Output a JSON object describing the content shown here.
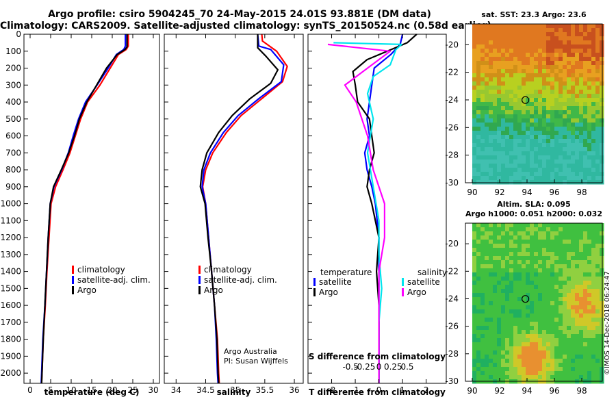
{
  "header": {
    "line1": "Argo profile: csiro 5904245_70 24-May-2015 24.01S 93.881E (DM data)",
    "line2": "Climatology: CARS2009. Satellite-adjusted climatology: synTS_20150524.nc (0.58d earlier)"
  },
  "footer_stamp": "©IMOS 14-Dec-2018 06:24:47",
  "credits": [
    "Argo Australia",
    "PI: Susan Wijffels"
  ],
  "colors": {
    "climatology": "#ff0000",
    "satellite": "#0000ff",
    "argo": "#000000",
    "sat_salinity": "#00e5ee",
    "argo_salinity": "#ff00ff"
  },
  "chart_data": [
    {
      "type": "line",
      "xlabel": "temperature (deg C)",
      "ylabel": "depth",
      "xlim": [
        -1.5,
        31.5
      ],
      "ylim": [
        2060,
        0
      ],
      "xticks": [
        "0",
        "5",
        "10",
        "15",
        "20",
        "25",
        "30"
      ],
      "yticks": [
        "0",
        "100",
        "200",
        "300",
        "400",
        "500",
        "600",
        "700",
        "800",
        "900",
        "1000",
        "1100",
        "1200",
        "1300",
        "1400",
        "1500",
        "1600",
        "1700",
        "1800",
        "1900",
        "2000"
      ],
      "legend": [
        "climatology",
        "satellite-adj. clim.",
        "Argo"
      ],
      "series": [
        {
          "name": "climatology",
          "points": [
            [
              23.9,
              0
            ],
            [
              23.9,
              70
            ],
            [
              23.4,
              90
            ],
            [
              21.5,
              120
            ],
            [
              19.5,
              200
            ],
            [
              17,
              300
            ],
            [
              14,
              400
            ],
            [
              12.3,
              500
            ],
            [
              11,
              600
            ],
            [
              9.7,
              700
            ],
            [
              8,
              800
            ],
            [
              6.2,
              900
            ],
            [
              5.1,
              1000
            ],
            [
              4.6,
              1200
            ],
            [
              4.1,
              1400
            ],
            [
              3.7,
              1600
            ],
            [
              3.2,
              1800
            ],
            [
              2.9,
              2000
            ],
            [
              2.8,
              2060
            ]
          ]
        },
        {
          "name": "satellite-adj. clim.",
          "points": [
            [
              23.2,
              0
            ],
            [
              23.2,
              70
            ],
            [
              22.8,
              90
            ],
            [
              21,
              120
            ],
            [
              19,
              200
            ],
            [
              16.3,
              300
            ],
            [
              13.5,
              400
            ],
            [
              11.8,
              500
            ],
            [
              10.5,
              600
            ],
            [
              9.3,
              700
            ],
            [
              7.7,
              800
            ],
            [
              5.8,
              900
            ],
            [
              4.9,
              1000
            ],
            [
              4.4,
              1200
            ],
            [
              4,
              1400
            ],
            [
              3.6,
              1600
            ],
            [
              3.1,
              1800
            ],
            [
              2.8,
              2000
            ],
            [
              2.7,
              2060
            ]
          ]
        },
        {
          "name": "Argo",
          "points": [
            [
              23.6,
              0
            ],
            [
              23.6,
              75
            ],
            [
              23.1,
              90
            ],
            [
              21.2,
              120
            ],
            [
              18.6,
              200
            ],
            [
              16.2,
              300
            ],
            [
              13.8,
              400
            ],
            [
              12,
              500
            ],
            [
              10.8,
              600
            ],
            [
              9.4,
              700
            ],
            [
              7.6,
              800
            ],
            [
              5.7,
              900
            ],
            [
              4.9,
              1000
            ],
            [
              4.4,
              1200
            ],
            [
              4,
              1400
            ],
            [
              3.6,
              1600
            ],
            [
              3.2,
              1800
            ],
            [
              2.9,
              2000
            ],
            [
              2.8,
              2060
            ]
          ]
        }
      ]
    },
    {
      "type": "line",
      "xlabel": "salinity",
      "xlim": [
        33.8,
        36.15
      ],
      "ylim": [
        2060,
        0
      ],
      "xticks": [
        "34",
        "34.5",
        "35",
        "35.5",
        "36"
      ],
      "legend": [
        "climatology",
        "satellite-adj. clim.",
        "Argo"
      ],
      "series": [
        {
          "name": "climatology",
          "points": [
            [
              35.45,
              0
            ],
            [
              35.46,
              40
            ],
            [
              35.7,
              100
            ],
            [
              35.88,
              190
            ],
            [
              35.8,
              280
            ],
            [
              35.45,
              380
            ],
            [
              35.1,
              480
            ],
            [
              34.85,
              580
            ],
            [
              34.62,
              700
            ],
            [
              34.5,
              800
            ],
            [
              34.45,
              900
            ],
            [
              34.5,
              1000
            ],
            [
              34.55,
              1200
            ],
            [
              34.6,
              1400
            ],
            [
              34.65,
              1600
            ],
            [
              34.7,
              1800
            ],
            [
              34.72,
              2000
            ],
            [
              34.73,
              2060
            ]
          ]
        },
        {
          "name": "satellite-adj. clim.",
          "points": [
            [
              35.38,
              0
            ],
            [
              35.4,
              70
            ],
            [
              35.6,
              90
            ],
            [
              35.82,
              180
            ],
            [
              35.78,
              280
            ],
            [
              35.4,
              380
            ],
            [
              35.05,
              480
            ],
            [
              34.8,
              580
            ],
            [
              34.58,
              700
            ],
            [
              34.47,
              800
            ],
            [
              34.44,
              900
            ],
            [
              34.5,
              1000
            ],
            [
              34.55,
              1200
            ],
            [
              34.6,
              1400
            ],
            [
              34.65,
              1600
            ],
            [
              34.68,
              1800
            ],
            [
              34.7,
              2000
            ],
            [
              34.71,
              2060
            ]
          ]
        },
        {
          "name": "Argo",
          "points": [
            [
              35.38,
              0
            ],
            [
              35.38,
              80
            ],
            [
              35.52,
              130
            ],
            [
              35.72,
              210
            ],
            [
              35.6,
              290
            ],
            [
              35.25,
              380
            ],
            [
              34.95,
              480
            ],
            [
              34.72,
              580
            ],
            [
              34.52,
              700
            ],
            [
              34.44,
              800
            ],
            [
              34.41,
              900
            ],
            [
              34.49,
              1000
            ],
            [
              34.54,
              1200
            ],
            [
              34.6,
              1400
            ],
            [
              34.65,
              1600
            ],
            [
              34.69,
              1800
            ],
            [
              34.71,
              2000
            ],
            [
              34.72,
              2060
            ]
          ]
        }
      ]
    },
    {
      "type": "line",
      "xlabel": "T difference from climatology",
      "xlabel2": "S difference from climatology",
      "xlim": [
        -3,
        2.85
      ],
      "ylim": [
        2060,
        0
      ],
      "xticks": [
        "-2",
        "-1",
        "0",
        "1",
        "2"
      ],
      "xticks2": [
        "-0.5",
        "-0.25",
        "0",
        "0.25",
        "0.5"
      ],
      "legend_left_title": "temperature",
      "legend_right_title": "salinity",
      "legend_left": [
        "satellite",
        "Argo"
      ],
      "legend_right": [
        "satellite",
        "Argo"
      ],
      "series": [
        {
          "name": "T satellite",
          "points": [
            [
              1,
              0
            ],
            [
              0.9,
              60
            ],
            [
              0.5,
              120
            ],
            [
              -0.2,
              200
            ],
            [
              -0.3,
              300
            ],
            [
              -0.4,
              400
            ],
            [
              -0.5,
              500
            ],
            [
              -0.4,
              600
            ],
            [
              -0.6,
              700
            ],
            [
              -0.5,
              800
            ],
            [
              -0.3,
              900
            ],
            [
              -0.15,
              1000
            ],
            [
              0,
              1200
            ],
            [
              0,
              1400
            ],
            [
              0,
              1600
            ],
            [
              0,
              1800
            ],
            [
              0,
              2000
            ],
            [
              0,
              2060
            ]
          ]
        },
        {
          "name": "T Argo",
          "points": [
            [
              1.6,
              0
            ],
            [
              1.2,
              50
            ],
            [
              0.7,
              80
            ],
            [
              -0.5,
              150
            ],
            [
              -1.1,
              220
            ],
            [
              -1,
              300
            ],
            [
              -0.9,
              400
            ],
            [
              -0.4,
              500
            ],
            [
              -0.3,
              600
            ],
            [
              -0.2,
              700
            ],
            [
              -0.4,
              800
            ],
            [
              -0.5,
              900
            ],
            [
              -0.3,
              1000
            ],
            [
              0,
              1200
            ],
            [
              -0.1,
              1400
            ],
            [
              0,
              1600
            ],
            [
              0,
              1800
            ],
            [
              0,
              2000
            ],
            [
              0,
              2060
            ]
          ]
        },
        {
          "name": "S satellite",
          "points": [
            [
              -0.8,
              50
            ],
            [
              0.4,
              60
            ],
            [
              0.3,
              90
            ],
            [
              0.2,
              180
            ],
            [
              -0.1,
              250
            ],
            [
              -0.2,
              350
            ],
            [
              -0.1,
              500
            ],
            [
              -0.2,
              700
            ],
            [
              -0.1,
              900
            ],
            [
              0,
              1100
            ],
            [
              0,
              1300
            ],
            [
              0.05,
              1500
            ],
            [
              0,
              1700
            ],
            [
              0,
              1900
            ],
            [
              0,
              2060
            ]
          ]
        },
        {
          "name": "S Argo",
          "points": [
            [
              -0.9,
              60
            ],
            [
              0.2,
              100
            ],
            [
              -0.2,
              200
            ],
            [
              -0.6,
              300
            ],
            [
              -0.4,
              400
            ],
            [
              -0.2,
              600
            ],
            [
              -0.1,
              800
            ],
            [
              0.1,
              1000
            ],
            [
              0.1,
              1200
            ],
            [
              0,
              1400
            ],
            [
              0,
              1600
            ],
            [
              0,
              1800
            ],
            [
              0,
              2060
            ]
          ]
        }
      ]
    },
    {
      "type": "heatmap",
      "title": "sat. SST: 23.3 Argo: 23.6",
      "xlim": [
        89.5,
        99.5
      ],
      "ylim": [
        -30,
        -18.5
      ],
      "xticks": [
        "90",
        "92",
        "94",
        "96",
        "98"
      ],
      "yticks": [
        "-20",
        "-22",
        "-24",
        "-26",
        "-28",
        "-30"
      ],
      "marker": [
        93.88,
        -24.01
      ]
    },
    {
      "type": "heatmap",
      "title": "Altim. SLA: 0.095",
      "subtitle": "Argo h1000: 0.051 h2000: 0.032",
      "xlim": [
        89.5,
        99.5
      ],
      "ylim": [
        -30,
        -18.5
      ],
      "xticks": [
        "90",
        "92",
        "94",
        "96",
        "98"
      ],
      "yticks": [
        "-20",
        "-22",
        "-24",
        "-26",
        "-28",
        "-30"
      ],
      "marker": [
        93.88,
        -24.01
      ]
    }
  ]
}
